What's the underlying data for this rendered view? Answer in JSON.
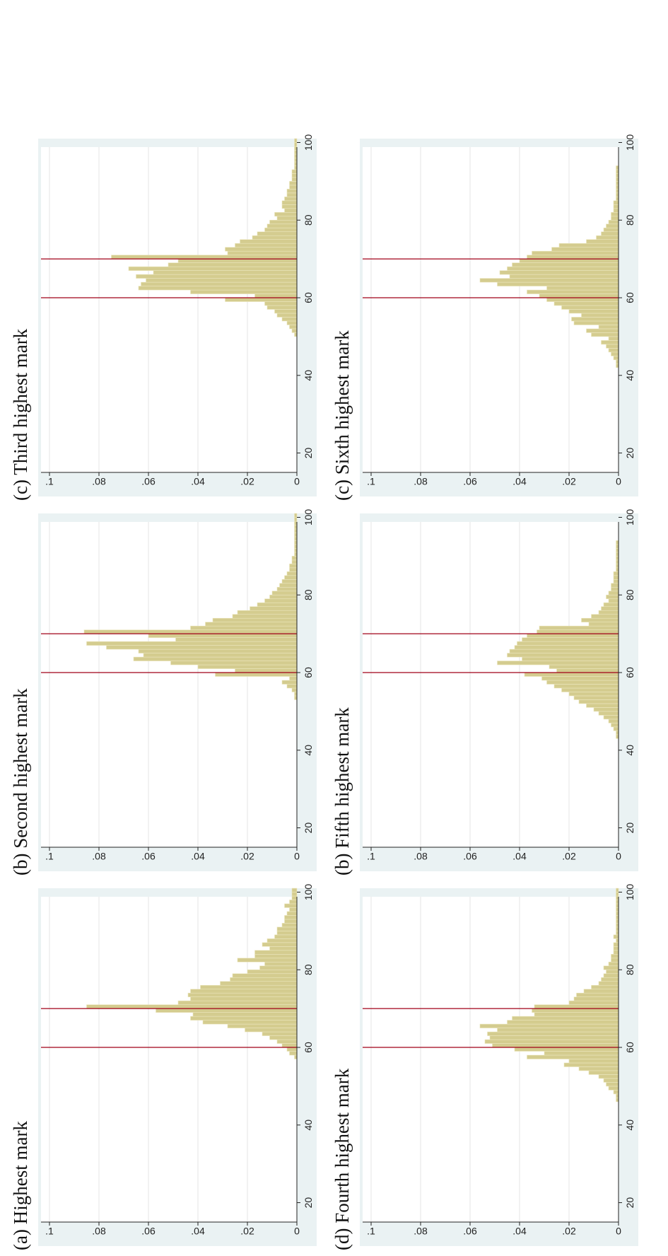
{
  "colors": {
    "bar": "#d4cc8f",
    "bar_edge": "#ece7bf",
    "refline": "#a00018",
    "plot_bg": "#eaf2f3",
    "grid": "#e4e4e4"
  },
  "x_tick_labels": [
    "20",
    "40",
    "60",
    "80",
    "100"
  ],
  "y_tick_labels": [
    "0",
    ".02",
    ".04",
    ".06",
    ".08",
    ".1"
  ],
  "chart_data": [
    {
      "type": "bar",
      "title": "(a) Highest mark",
      "xlim": [
        15,
        101
      ],
      "ylim": [
        0,
        0.1
      ],
      "xticks": [
        20,
        40,
        60,
        80,
        100
      ],
      "yticks": [
        0,
        0.02,
        0.04,
        0.06,
        0.08,
        0.1
      ],
      "reference_lines_x": [
        60,
        70
      ],
      "grid": true,
      "bin_width": 1,
      "bin_start": 50,
      "values": [
        0,
        0,
        0,
        0,
        0,
        0,
        0,
        0.001,
        0.003,
        0.004,
        0.006,
        0.008,
        0.011,
        0.014,
        0.021,
        0.028,
        0.038,
        0.043,
        0.042,
        0.057,
        0.085,
        0.048,
        0.043,
        0.044,
        0.043,
        0.039,
        0.031,
        0.027,
        0.026,
        0.02,
        0.015,
        0.013,
        0.024,
        0.017,
        0.017,
        0.011,
        0.014,
        0.012,
        0.009,
        0.008,
        0.008,
        0.006,
        0.005,
        0.005,
        0.004,
        0.003,
        0.005,
        0.003,
        0.002,
        0.002,
        0.002
      ]
    },
    {
      "type": "bar",
      "title": "(b) Second highest mark",
      "xlim": [
        15,
        101
      ],
      "ylim": [
        0,
        0.1
      ],
      "xticks": [
        20,
        40,
        60,
        80,
        100
      ],
      "yticks": [
        0,
        0.02,
        0.04,
        0.06,
        0.08,
        0.1
      ],
      "reference_lines_x": [
        60,
        70
      ],
      "grid": true,
      "bin_width": 1,
      "bin_start": 50,
      "values": [
        0,
        0,
        0,
        0.001,
        0.001,
        0.002,
        0.004,
        0.006,
        0.003,
        0.033,
        0.025,
        0.04,
        0.051,
        0.066,
        0.062,
        0.064,
        0.077,
        0.085,
        0.049,
        0.06,
        0.086,
        0.043,
        0.037,
        0.034,
        0.026,
        0.024,
        0.019,
        0.016,
        0.013,
        0.011,
        0.01,
        0.008,
        0.007,
        0.006,
        0.005,
        0.004,
        0.003,
        0.003,
        0.002,
        0.002,
        0.001,
        0.001,
        0.001,
        0.001,
        0.001,
        0.001,
        0.001,
        0.001,
        0.001,
        0.001,
        0.001
      ]
    },
    {
      "type": "bar",
      "title": "(c) Third highest mark",
      "xlim": [
        15,
        101
      ],
      "ylim": [
        0,
        0.1
      ],
      "xticks": [
        20,
        40,
        60,
        80,
        100
      ],
      "yticks": [
        0,
        0.02,
        0.04,
        0.06,
        0.08,
        0.1
      ],
      "reference_lines_x": [
        60,
        70
      ],
      "grid": true,
      "bin_width": 1,
      "bin_start": 50,
      "values": [
        0.001,
        0.002,
        0.003,
        0.004,
        0.006,
        0.008,
        0.009,
        0.012,
        0.013,
        0.029,
        0.017,
        0.043,
        0.064,
        0.063,
        0.061,
        0.065,
        0.058,
        0.068,
        0.052,
        0.048,
        0.075,
        0.028,
        0.029,
        0.025,
        0.023,
        0.018,
        0.016,
        0.013,
        0.012,
        0.011,
        0.008,
        0.009,
        0.005,
        0.006,
        0.006,
        0.005,
        0.004,
        0.004,
        0.003,
        0.003,
        0.002,
        0.002,
        0.002,
        0.001,
        0.001,
        0.001,
        0.001,
        0.001,
        0.001,
        0.001,
        0.001
      ]
    },
    {
      "type": "bar",
      "title": "(d) Fourth highest mark",
      "xlim": [
        15,
        101
      ],
      "ylim": [
        0,
        0.1
      ],
      "xticks": [
        20,
        40,
        60,
        80,
        100
      ],
      "yticks": [
        0,
        0.02,
        0.04,
        0.06,
        0.08,
        0.1
      ],
      "reference_lines_x": [
        60,
        70
      ],
      "grid": true,
      "bin_width": 1,
      "bin_start": 46,
      "values": [
        0.001,
        0.001,
        0.002,
        0.004,
        0.005,
        0.006,
        0.008,
        0.012,
        0.016,
        0.022,
        0.02,
        0.037,
        0.03,
        0.042,
        0.051,
        0.054,
        0.052,
        0.053,
        0.049,
        0.056,
        0.045,
        0.043,
        0.034,
        0.035,
        0.034,
        0.02,
        0.018,
        0.017,
        0.014,
        0.011,
        0.008,
        0.007,
        0.006,
        0.005,
        0.006,
        0.004,
        0.003,
        0.003,
        0.002,
        0.002,
        0.002,
        0.001,
        0.002,
        0.001,
        0.001,
        0.001,
        0.001,
        0.001,
        0.001,
        0.001,
        0.001,
        0.001,
        0.001,
        0.001,
        0.001
      ]
    },
    {
      "type": "bar",
      "title": "(b) Fifth highest mark",
      "xlim": [
        15,
        101
      ],
      "ylim": [
        0,
        0.1
      ],
      "xticks": [
        20,
        40,
        60,
        80,
        100
      ],
      "yticks": [
        0,
        0.02,
        0.04,
        0.06,
        0.08,
        0.1
      ],
      "reference_lines_x": [
        60,
        70
      ],
      "grid": true,
      "bin_width": 1,
      "bin_start": 43,
      "values": [
        0.001,
        0.001,
        0.002,
        0.003,
        0.004,
        0.006,
        0.008,
        0.01,
        0.013,
        0.016,
        0.018,
        0.02,
        0.023,
        0.026,
        0.029,
        0.031,
        0.038,
        0.025,
        0.028,
        0.049,
        0.039,
        0.045,
        0.044,
        0.042,
        0.041,
        0.039,
        0.037,
        0.033,
        0.032,
        0.012,
        0.015,
        0.011,
        0.008,
        0.007,
        0.006,
        0.004,
        0.005,
        0.004,
        0.003,
        0.003,
        0.002,
        0.002,
        0.002,
        0.001,
        0.001,
        0.001,
        0.001,
        0.001,
        0.001,
        0.001,
        0.001
      ]
    },
    {
      "type": "bar",
      "title": "(c) Sixth highest mark",
      "xlim": [
        15,
        101
      ],
      "ylim": [
        0,
        0.1
      ],
      "xticks": [
        20,
        40,
        60,
        80,
        100
      ],
      "yticks": [
        0,
        0.02,
        0.04,
        0.06,
        0.08,
        0.1
      ],
      "reference_lines_x": [
        60,
        70
      ],
      "grid": true,
      "bin_width": 1,
      "bin_start": 42,
      "values": [
        0.001,
        0.001,
        0.002,
        0.003,
        0.004,
        0.005,
        0.007,
        0.004,
        0.011,
        0.013,
        0.008,
        0.018,
        0.019,
        0.015,
        0.02,
        0.023,
        0.026,
        0.029,
        0.032,
        0.037,
        0.029,
        0.049,
        0.056,
        0.044,
        0.048,
        0.045,
        0.043,
        0.04,
        0.037,
        0.035,
        0.027,
        0.024,
        0.013,
        0.009,
        0.007,
        0.006,
        0.005,
        0.004,
        0.003,
        0.003,
        0.002,
        0.002,
        0.002,
        0.001,
        0.001,
        0.001,
        0.001,
        0.001,
        0.001,
        0.001,
        0.001,
        0.001
      ]
    }
  ]
}
